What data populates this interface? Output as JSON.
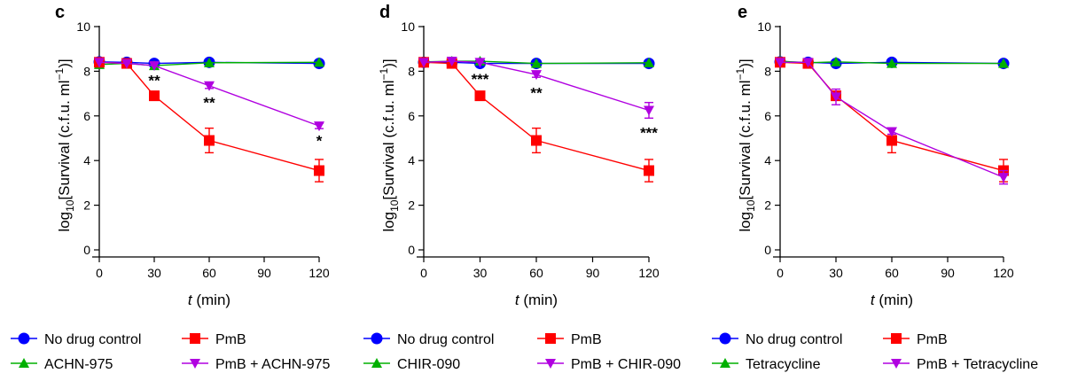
{
  "chart_data": [
    {
      "type": "line",
      "panel_label": "c",
      "xlabel_italic": "t",
      "xlabel_rest": " (min)",
      "ylabel": "log10[Survival (c.f.u. ml−1)]",
      "xlim": [
        0,
        120
      ],
      "ylim": [
        0,
        10
      ],
      "xticks": [
        "0",
        "30",
        "60",
        "90",
        "120"
      ],
      "yticks": [
        "0",
        "2",
        "4",
        "6",
        "8",
        "10"
      ],
      "grid": false,
      "series": [
        {
          "name": "No drug control",
          "color": "#0000ff",
          "marker": "circle",
          "x": [
            0,
            15,
            30,
            60,
            120
          ],
          "y": [
            8.42,
            8.4,
            8.35,
            8.4,
            8.35
          ],
          "err": [
            0.08,
            0.08,
            0.08,
            0.08,
            0.08
          ]
        },
        {
          "name": "ACHN-975",
          "color": "#00b000",
          "marker": "triangle-up",
          "x": [
            0,
            15,
            30,
            60,
            120
          ],
          "y": [
            8.3,
            8.35,
            8.25,
            8.38,
            8.4
          ],
          "err": [
            0.08,
            0.08,
            0.08,
            0.08,
            0.08
          ]
        },
        {
          "name": "PmB",
          "color": "#ff0000",
          "marker": "square",
          "x": [
            0,
            15,
            30,
            60,
            120
          ],
          "y": [
            8.4,
            8.35,
            6.9,
            4.9,
            3.55
          ],
          "err": [
            0.1,
            0.1,
            0.1,
            0.55,
            0.5
          ]
        },
        {
          "name": "PmB + ACHN-975",
          "color": "#b000e0",
          "marker": "triangle-down",
          "x": [
            0,
            15,
            30,
            60,
            120
          ],
          "y": [
            8.4,
            8.35,
            8.25,
            7.35,
            5.55
          ],
          "err": [
            0.08,
            0.08,
            0.08,
            0.12,
            0.12
          ]
        }
      ],
      "annotations": [
        {
          "text": "**",
          "x": 30,
          "y": 7.6
        },
        {
          "text": "**",
          "x": 60,
          "y": 6.6
        },
        {
          "text": "*",
          "x": 120,
          "y": 4.9
        }
      ]
    },
    {
      "type": "line",
      "panel_label": "d",
      "xlabel_italic": "t",
      "xlabel_rest": " (min)",
      "ylabel": "log10[Survival (c.f.u. ml−1)]",
      "xlim": [
        0,
        120
      ],
      "ylim": [
        0,
        10
      ],
      "xticks": [
        "0",
        "30",
        "60",
        "90",
        "120"
      ],
      "yticks": [
        "0",
        "2",
        "4",
        "6",
        "8",
        "10"
      ],
      "grid": false,
      "series": [
        {
          "name": "No drug control",
          "color": "#0000ff",
          "marker": "circle",
          "x": [
            0,
            15,
            30,
            60,
            120
          ],
          "y": [
            8.4,
            8.4,
            8.35,
            8.35,
            8.35
          ],
          "err": [
            0.08,
            0.08,
            0.08,
            0.08,
            0.08
          ]
        },
        {
          "name": "CHIR-090",
          "color": "#00b000",
          "marker": "triangle-up",
          "x": [
            0,
            15,
            30,
            60,
            120
          ],
          "y": [
            8.42,
            8.45,
            8.45,
            8.35,
            8.38
          ],
          "err": [
            0.08,
            0.08,
            0.08,
            0.08,
            0.08
          ]
        },
        {
          "name": "PmB",
          "color": "#ff0000",
          "marker": "square",
          "x": [
            0,
            15,
            30,
            60,
            120
          ],
          "y": [
            8.4,
            8.35,
            6.9,
            4.9,
            3.55
          ],
          "err": [
            0.1,
            0.1,
            0.1,
            0.55,
            0.5
          ]
        },
        {
          "name": "PmB + CHIR-090",
          "color": "#b000e0",
          "marker": "triangle-down",
          "x": [
            0,
            15,
            30,
            60,
            120
          ],
          "y": [
            8.4,
            8.45,
            8.4,
            7.85,
            6.25
          ],
          "err": [
            0.08,
            0.08,
            0.08,
            0.12,
            0.35
          ]
        }
      ],
      "annotations": [
        {
          "text": "***",
          "x": 30,
          "y": 7.65
        },
        {
          "text": "**",
          "x": 60,
          "y": 7.05
        },
        {
          "text": "***",
          "x": 120,
          "y": 5.25
        }
      ]
    },
    {
      "type": "line",
      "panel_label": "e",
      "xlabel_italic": "t",
      "xlabel_rest": " (min)",
      "ylabel": "log10[Survival (c.f.u. ml−1)]",
      "xlim": [
        0,
        120
      ],
      "ylim": [
        0,
        10
      ],
      "xticks": [
        "0",
        "30",
        "60",
        "90",
        "120"
      ],
      "yticks": [
        "0",
        "2",
        "4",
        "6",
        "8",
        "10"
      ],
      "grid": false,
      "series": [
        {
          "name": "No drug control",
          "color": "#0000ff",
          "marker": "circle",
          "x": [
            0,
            15,
            30,
            60,
            120
          ],
          "y": [
            8.42,
            8.4,
            8.35,
            8.4,
            8.35
          ],
          "err": [
            0.08,
            0.08,
            0.08,
            0.08,
            0.08
          ]
        },
        {
          "name": "Tetracycline",
          "color": "#00b000",
          "marker": "triangle-up",
          "x": [
            0,
            15,
            30,
            60,
            120
          ],
          "y": [
            8.45,
            8.38,
            8.42,
            8.35,
            8.35
          ],
          "err": [
            0.08,
            0.08,
            0.08,
            0.08,
            0.08
          ]
        },
        {
          "name": "PmB",
          "color": "#ff0000",
          "marker": "square",
          "x": [
            0,
            15,
            30,
            60,
            120
          ],
          "y": [
            8.4,
            8.35,
            6.9,
            4.9,
            3.55
          ],
          "err": [
            0.1,
            0.1,
            0.1,
            0.55,
            0.5
          ]
        },
        {
          "name": "PmB + Tetracycline",
          "color": "#b000e0",
          "marker": "triangle-down",
          "x": [
            0,
            15,
            30,
            60,
            120
          ],
          "y": [
            8.4,
            8.4,
            6.85,
            5.3,
            3.25
          ],
          "err": [
            0.08,
            0.08,
            0.35,
            0.12,
            0.3
          ]
        }
      ],
      "annotations": []
    }
  ]
}
